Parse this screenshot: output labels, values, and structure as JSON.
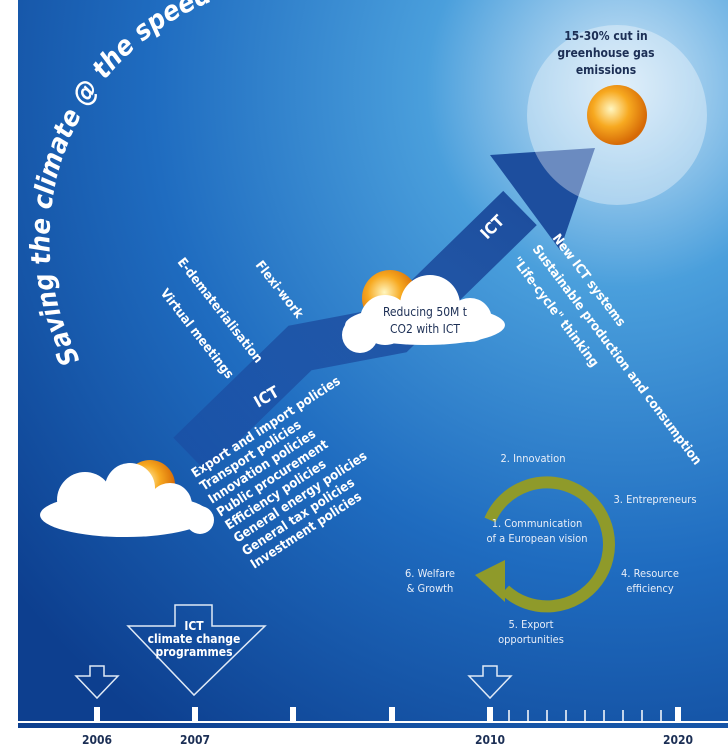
{
  "title": "Saving the climate @ the speed of light",
  "goal": [
    "15-30% cut in",
    "greenhouse gas",
    "emissions"
  ],
  "milestone": [
    "Reducing 50M t",
    "CO2 with ICT"
  ],
  "arrow_labels": [
    "ICT",
    "ICT"
  ],
  "programme": [
    "ICT",
    "climate change",
    "programmes"
  ],
  "policies": [
    "Export and import policies",
    "Transport policies",
    "Innovation policies",
    "Public procurement",
    "Efficiency policies",
    "General energy policies",
    "General tax policies",
    "Investment policies"
  ],
  "ict_uses_early": [
    "Flexi-work",
    "E-dematerialisation",
    "Virtual meetings"
  ],
  "ict_uses_late": [
    "New ICT systems",
    "Sustainable production and consumption",
    "\"Life-cycle\" thinking"
  ],
  "cycle": {
    "center": [
      "1. Communication",
      "of a European vision"
    ],
    "steps": [
      [
        "2. Innovation"
      ],
      [
        "3. Entrepreneurs"
      ],
      [
        "4. Resource",
        "efficiency"
      ],
      [
        "5. Export",
        "opportunities"
      ],
      [
        "6. Welfare",
        "& Growth"
      ]
    ]
  },
  "timeline": [
    "2006",
    "2007",
    "2010",
    "2020"
  ]
}
